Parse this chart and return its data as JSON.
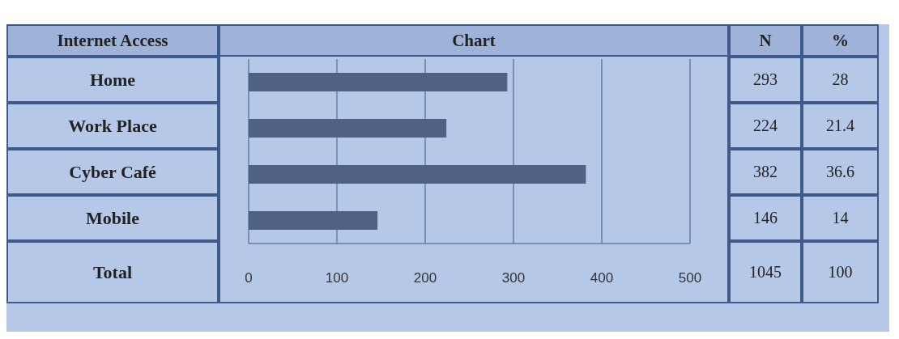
{
  "chart_data": {
    "type": "bar",
    "orientation": "horizontal",
    "title": "Chart",
    "ylabel": "Internet Access",
    "categories": [
      "Home",
      "Work Place",
      "Cyber  Café",
      "Mobile"
    ],
    "values": [
      293,
      224,
      382,
      146
    ],
    "color": "#4f6283",
    "xlim": [
      0,
      500
    ],
    "xticks": [
      0,
      100,
      200,
      300,
      400,
      500
    ],
    "grid": "x",
    "data_labels": true,
    "annotations": [
      "N",
      "%",
      "28",
      "21.4",
      "36.6",
      "14",
      "Total",
      "1045",
      "100"
    ]
  }
}
